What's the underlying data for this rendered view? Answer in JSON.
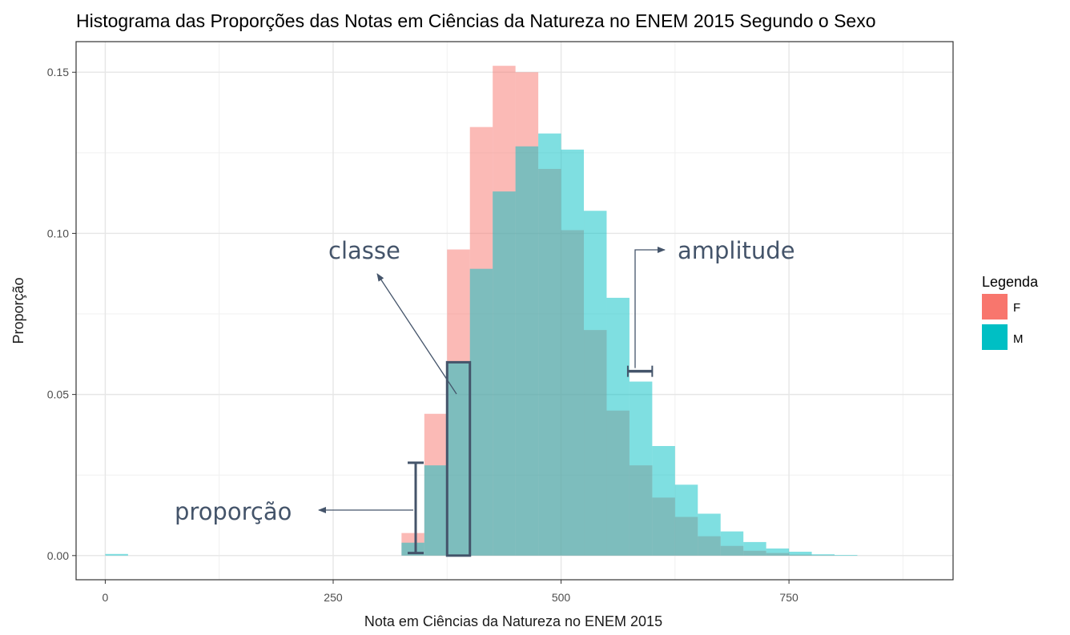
{
  "chart_data": {
    "type": "bar",
    "title": "Histograma das Proporções das Notas em Ciências da Natureza no ENEM 2015 Segundo o Sexo",
    "xlabel": "Nota em Ciências da Natureza no ENEM 2015",
    "ylabel": "Proporção",
    "xlim": [
      -32,
      930
    ],
    "ylim": [
      -0.0075,
      0.1595
    ],
    "xticks": [
      0,
      250,
      500,
      750
    ],
    "xtick_labels": [
      "0",
      "250",
      "500",
      "750"
    ],
    "yticks": [
      0.0,
      0.05,
      0.1,
      0.15
    ],
    "ytick_labels": [
      "0.00",
      "0.05",
      "0.10",
      "0.15"
    ],
    "grid": true,
    "bin_width": 25,
    "bin_starts": [
      0,
      325,
      350,
      375,
      400,
      425,
      450,
      475,
      500,
      525,
      550,
      575,
      600,
      625,
      650,
      675,
      700,
      725,
      750,
      775,
      800
    ],
    "legend": {
      "title": "Legenda",
      "position": "right",
      "entries": [
        {
          "label": "F",
          "color": "#f8766d"
        },
        {
          "label": "M",
          "color": "#00bfc4"
        }
      ]
    },
    "series": [
      {
        "name": "F",
        "color": "#f8766d",
        "values": [
          0.0,
          0.007,
          0.044,
          0.095,
          0.133,
          0.152,
          0.15,
          0.12,
          0.101,
          0.07,
          0.045,
          0.028,
          0.018,
          0.012,
          0.006,
          0.003,
          0.0015,
          0.0008,
          0.0003,
          0.0001,
          0.0
        ]
      },
      {
        "name": "M",
        "color": "#00bfc4",
        "values": [
          0.0005,
          0.004,
          0.028,
          0.06,
          0.089,
          0.113,
          0.127,
          0.131,
          0.126,
          0.107,
          0.08,
          0.054,
          0.034,
          0.022,
          0.013,
          0.0075,
          0.0042,
          0.0022,
          0.0012,
          0.0004,
          0.0002
        ]
      }
    ],
    "annotations": [
      {
        "text": "classe"
      },
      {
        "text": "amplitude"
      },
      {
        "text": "proporção"
      }
    ],
    "annotation_color": "#44546a"
  }
}
